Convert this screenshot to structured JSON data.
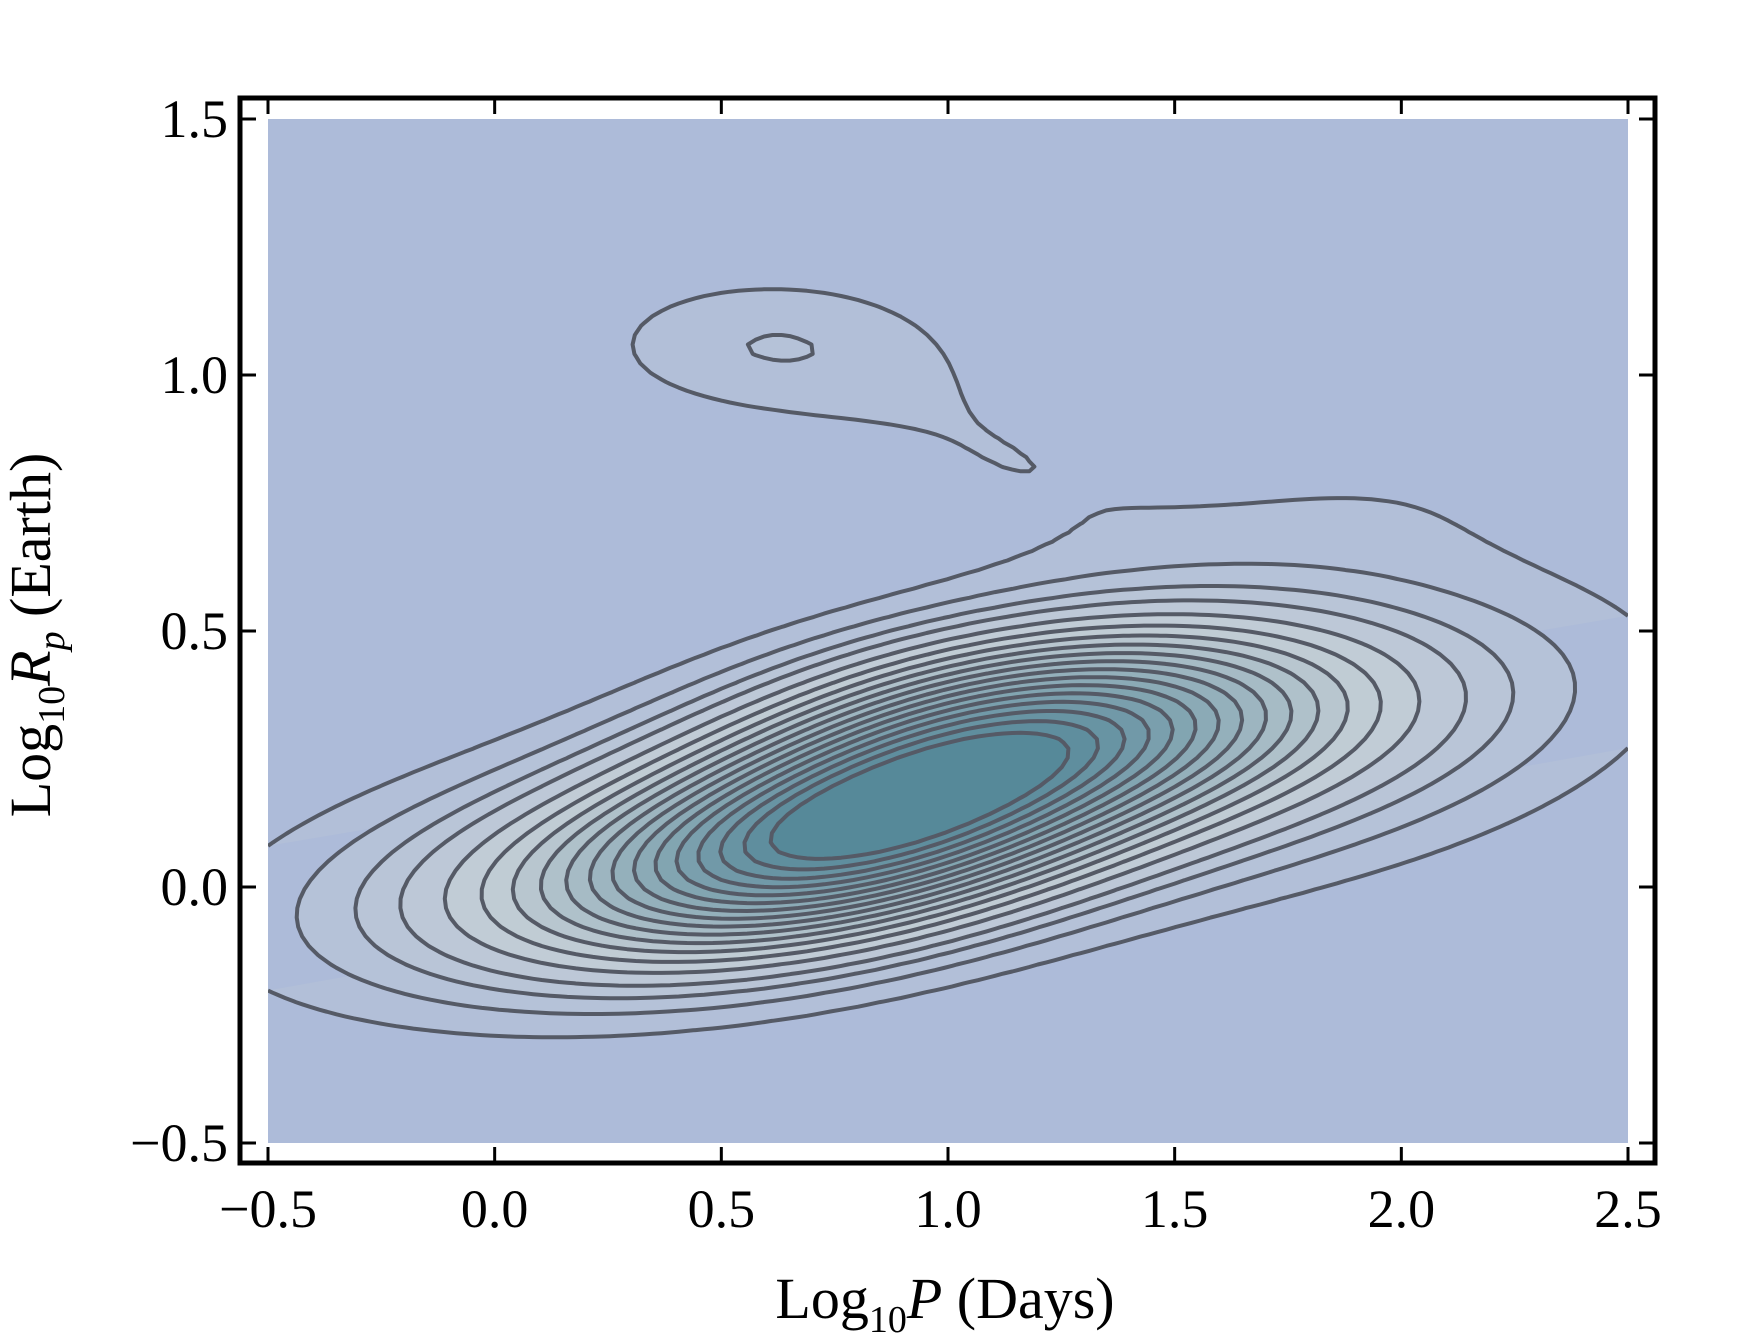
{
  "chart_data": {
    "type": "contour",
    "title": "",
    "xlabel": {
      "prefix": "Log",
      "sub": "10",
      "var": "P",
      "suffix": " (Days)"
    },
    "ylabel": {
      "prefix": "Log",
      "sub": "10",
      "var": "R",
      "var_sub": "p",
      "suffix": " (Earth)"
    },
    "xlim": [
      -0.5,
      2.5
    ],
    "ylim": [
      -0.5,
      1.5
    ],
    "xticks": [
      -0.5,
      0.0,
      0.5,
      1.0,
      1.5,
      2.0,
      2.5
    ],
    "yticks": [
      -0.5,
      0.0,
      0.5,
      1.0,
      1.5
    ],
    "xtick_labels": [
      "−0.5",
      "0.0",
      "0.5",
      "1.0",
      "1.5",
      "2.0",
      "2.5"
    ],
    "ytick_labels": [
      "−0.5",
      "0.0",
      "0.5",
      "1.0",
      "1.5"
    ],
    "grid": false,
    "legend": "none",
    "colors": {
      "low_density": "#adbbd9",
      "high_density": "#3f7a8c",
      "contour_line": "#555a66"
    },
    "density_components": [
      {
        "x": 0.78,
        "y": 0.1,
        "sx": 0.42,
        "sy": 0.15,
        "rho": 0.45,
        "w": 1.0
      },
      {
        "x": 1.22,
        "y": 0.32,
        "sx": 0.44,
        "sy": 0.14,
        "rho": 0.3,
        "w": 0.8
      },
      {
        "x": 0.3,
        "y": 0.03,
        "sx": 0.55,
        "sy": 0.17,
        "rho": 0.35,
        "w": 0.3
      },
      {
        "x": 1.75,
        "y": 0.28,
        "sx": 0.55,
        "sy": 0.2,
        "rho": 0.4,
        "w": 0.22
      },
      {
        "x": 0.6,
        "y": 1.06,
        "sx": 0.28,
        "sy": 0.1,
        "rho": 0.0,
        "w": 0.13
      },
      {
        "x": 1.1,
        "y": 0.85,
        "sx": 0.3,
        "sy": 0.14,
        "rho": -0.3,
        "w": 0.07
      },
      {
        "x": 1.9,
        "y": 0.75,
        "sx": 0.4,
        "sy": 0.12,
        "rho": 0.2,
        "w": 0.06
      }
    ],
    "contour_levels": [
      0.05,
      0.09,
      0.13,
      0.17,
      0.22,
      0.27,
      0.32,
      0.37,
      0.42,
      0.47,
      0.52,
      0.57,
      0.62,
      0.67,
      0.72,
      0.77,
      0.82,
      0.87
    ]
  }
}
